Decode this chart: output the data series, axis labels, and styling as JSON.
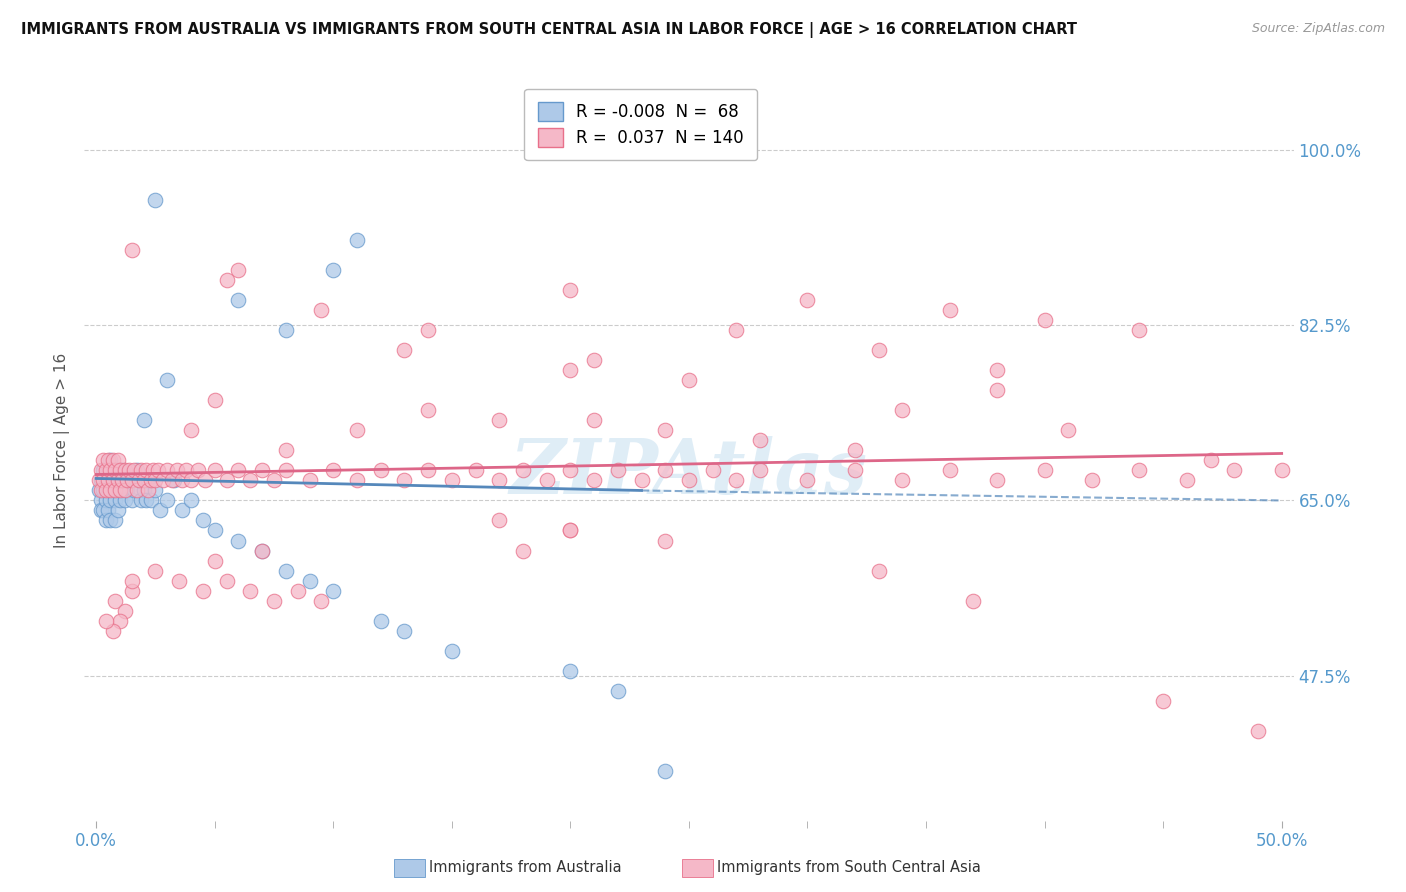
{
  "title": "IMMIGRANTS FROM AUSTRALIA VS IMMIGRANTS FROM SOUTH CENTRAL ASIA IN LABOR FORCE | AGE > 16 CORRELATION CHART",
  "source": "Source: ZipAtlas.com",
  "ylabel": "In Labor Force | Age > 16",
  "y_tick_labels": [
    "47.5%",
    "65.0%",
    "82.5%",
    "100.0%"
  ],
  "y_tick_values": [
    0.475,
    0.65,
    0.825,
    1.0
  ],
  "x_tick_labels": [
    "0.0%",
    "50.0%"
  ],
  "x_tick_values": [
    0.0,
    0.5
  ],
  "xlim": [
    -0.005,
    0.505
  ],
  "ylim": [
    0.33,
    1.07
  ],
  "legend_R_blue": "-0.008",
  "legend_N_blue": "68",
  "legend_R_pink": "0.037",
  "legend_N_pink": "140",
  "color_blue_fill": "#aec9e8",
  "color_blue_edge": "#6699cc",
  "color_pink_fill": "#f5b8c8",
  "color_pink_edge": "#e8708a",
  "color_blue_line": "#5588bb",
  "color_pink_line": "#dd6688",
  "color_axis_label": "#5599cc",
  "watermark_color": "#c5dff0",
  "grid_color": "#cccccc",
  "title_color": "#111111",
  "source_color": "#999999",
  "ylabel_color": "#555555",
  "blue_x": [
    0.001,
    0.002,
    0.002,
    0.002,
    0.003,
    0.003,
    0.003,
    0.004,
    0.004,
    0.004,
    0.005,
    0.005,
    0.005,
    0.006,
    0.006,
    0.006,
    0.006,
    0.007,
    0.007,
    0.008,
    0.008,
    0.008,
    0.009,
    0.009,
    0.009,
    0.01,
    0.01,
    0.011,
    0.011,
    0.012,
    0.012,
    0.013,
    0.014,
    0.015,
    0.016,
    0.017,
    0.018,
    0.019,
    0.02,
    0.021,
    0.022,
    0.023,
    0.025,
    0.027,
    0.03,
    0.033,
    0.036,
    0.04,
    0.045,
    0.05,
    0.06,
    0.07,
    0.08,
    0.09,
    0.1,
    0.12,
    0.13,
    0.15,
    0.2,
    0.22,
    0.03,
    0.06,
    0.08,
    0.1,
    0.11,
    0.025,
    0.24,
    0.02
  ],
  "blue_y": [
    0.66,
    0.67,
    0.65,
    0.64,
    0.68,
    0.66,
    0.64,
    0.67,
    0.65,
    0.63,
    0.68,
    0.66,
    0.64,
    0.69,
    0.67,
    0.65,
    0.63,
    0.68,
    0.66,
    0.67,
    0.65,
    0.63,
    0.68,
    0.66,
    0.64,
    0.67,
    0.65,
    0.68,
    0.66,
    0.67,
    0.65,
    0.66,
    0.67,
    0.65,
    0.66,
    0.68,
    0.67,
    0.65,
    0.66,
    0.65,
    0.67,
    0.65,
    0.66,
    0.64,
    0.65,
    0.67,
    0.64,
    0.65,
    0.63,
    0.62,
    0.61,
    0.6,
    0.58,
    0.57,
    0.56,
    0.53,
    0.52,
    0.5,
    0.48,
    0.46,
    0.77,
    0.85,
    0.82,
    0.88,
    0.91,
    0.95,
    0.38,
    0.73
  ],
  "pink_x": [
    0.001,
    0.002,
    0.002,
    0.003,
    0.003,
    0.004,
    0.004,
    0.005,
    0.005,
    0.006,
    0.006,
    0.007,
    0.007,
    0.008,
    0.008,
    0.009,
    0.009,
    0.01,
    0.01,
    0.011,
    0.012,
    0.012,
    0.013,
    0.014,
    0.015,
    0.016,
    0.017,
    0.018,
    0.019,
    0.02,
    0.021,
    0.022,
    0.023,
    0.024,
    0.025,
    0.026,
    0.028,
    0.03,
    0.032,
    0.034,
    0.036,
    0.038,
    0.04,
    0.043,
    0.046,
    0.05,
    0.055,
    0.06,
    0.065,
    0.07,
    0.075,
    0.08,
    0.09,
    0.1,
    0.11,
    0.12,
    0.13,
    0.14,
    0.15,
    0.16,
    0.17,
    0.18,
    0.19,
    0.2,
    0.21,
    0.22,
    0.23,
    0.24,
    0.25,
    0.26,
    0.27,
    0.28,
    0.3,
    0.32,
    0.34,
    0.36,
    0.38,
    0.4,
    0.42,
    0.44,
    0.46,
    0.48,
    0.05,
    0.13,
    0.2,
    0.27,
    0.3,
    0.33,
    0.06,
    0.2,
    0.36,
    0.4,
    0.44,
    0.38,
    0.38,
    0.04,
    0.08,
    0.11,
    0.14,
    0.17,
    0.21,
    0.24,
    0.28,
    0.32,
    0.17,
    0.2,
    0.24,
    0.07,
    0.05,
    0.025,
    0.035,
    0.045,
    0.055,
    0.065,
    0.075,
    0.085,
    0.095,
    0.015,
    0.015,
    0.008,
    0.012,
    0.01,
    0.007,
    0.004,
    0.18,
    0.2,
    0.33,
    0.37,
    0.45,
    0.49,
    0.015,
    0.055,
    0.095,
    0.14,
    0.21,
    0.25,
    0.34,
    0.41,
    0.47,
    0.5
  ],
  "pink_y": [
    0.67,
    0.68,
    0.66,
    0.69,
    0.67,
    0.68,
    0.66,
    0.69,
    0.67,
    0.68,
    0.66,
    0.69,
    0.67,
    0.68,
    0.66,
    0.69,
    0.67,
    0.68,
    0.66,
    0.67,
    0.68,
    0.66,
    0.67,
    0.68,
    0.67,
    0.68,
    0.66,
    0.67,
    0.68,
    0.67,
    0.68,
    0.66,
    0.67,
    0.68,
    0.67,
    0.68,
    0.67,
    0.68,
    0.67,
    0.68,
    0.67,
    0.68,
    0.67,
    0.68,
    0.67,
    0.68,
    0.67,
    0.68,
    0.67,
    0.68,
    0.67,
    0.68,
    0.67,
    0.68,
    0.67,
    0.68,
    0.67,
    0.68,
    0.67,
    0.68,
    0.67,
    0.68,
    0.67,
    0.68,
    0.67,
    0.68,
    0.67,
    0.68,
    0.67,
    0.68,
    0.67,
    0.68,
    0.67,
    0.68,
    0.67,
    0.68,
    0.67,
    0.68,
    0.67,
    0.68,
    0.67,
    0.68,
    0.75,
    0.8,
    0.78,
    0.82,
    0.85,
    0.8,
    0.88,
    0.86,
    0.84,
    0.83,
    0.82,
    0.78,
    0.76,
    0.72,
    0.7,
    0.72,
    0.74,
    0.73,
    0.73,
    0.72,
    0.71,
    0.7,
    0.63,
    0.62,
    0.61,
    0.6,
    0.59,
    0.58,
    0.57,
    0.56,
    0.57,
    0.56,
    0.55,
    0.56,
    0.55,
    0.56,
    0.57,
    0.55,
    0.54,
    0.53,
    0.52,
    0.53,
    0.6,
    0.62,
    0.58,
    0.55,
    0.45,
    0.42,
    0.9,
    0.87,
    0.84,
    0.82,
    0.79,
    0.77,
    0.74,
    0.72,
    0.69,
    0.68
  ]
}
